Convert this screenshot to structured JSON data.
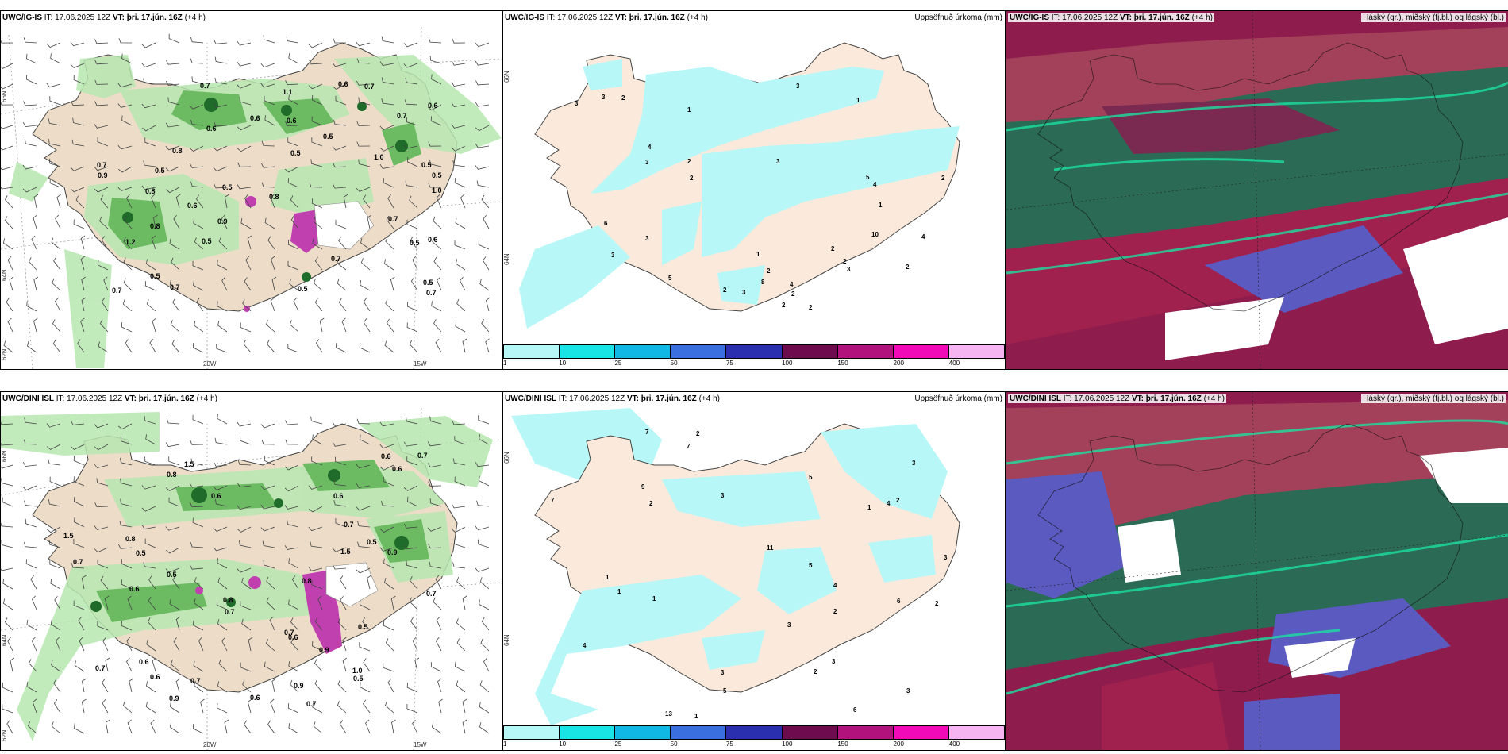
{
  "panels": {
    "p1": {
      "model": "UWC/IG-IS",
      "it_label": "IT:",
      "it": "17.06.2025 12Z",
      "vt_label": "VT:",
      "vt": "þri. 17.jún. 16Z",
      "lead": "(+4 h)"
    },
    "p2": {
      "model": "UWC/IG-IS",
      "it_label": "IT:",
      "it": "17.06.2025 12Z",
      "vt_label": "VT:",
      "vt": "þri. 17.jún. 16Z",
      "lead": "(+4 h)",
      "field": "Uppsöfnuð úrkoma (mm)"
    },
    "p3": {
      "model": "UWC/IG-IS",
      "it_label": "IT:",
      "it": "17.06.2025 12Z",
      "vt_label": "VT:",
      "vt": "þri. 17.jún. 16Z",
      "lead": "(+4 h)",
      "field": "Háský (gr.), miðský (fj.bl.) og lágský (bl.)"
    },
    "p4": {
      "model": "UWC/DINI ISL",
      "it_label": "IT:",
      "it": "17.06.2025 12Z",
      "vt_label": "VT:",
      "vt": "þri. 17.jún. 16Z",
      "lead": "(+4 h)"
    },
    "p5": {
      "model": "UWC/DINI ISL",
      "it_label": "IT:",
      "it": "17.06.2025 12Z",
      "vt_label": "VT:",
      "vt": "þri. 17.jún. 16Z",
      "lead": "(+4 h)",
      "field": "Uppsöfnuð úrkoma (mm)"
    },
    "p6": {
      "model": "UWC/DINI ISL",
      "it_label": "IT:",
      "it": "17.06.2025 12Z",
      "vt_label": "VT:",
      "vt": "þri. 17.jún. 16Z",
      "lead": "(+4 h)",
      "field": "Háský (gr.), miðský (fj.bl.) og lágský (bl.)"
    }
  },
  "axes": {
    "lat_66": "66N",
    "lat_64": "64N",
    "lat_62": "62N",
    "lon_20": "20W",
    "lon_15": "15W"
  },
  "legend": {
    "colors": [
      "#b8f7f7",
      "#19e5e5",
      "#10b8e6",
      "#3a6fe0",
      "#2a2fb0",
      "#6e0a4e",
      "#b2127c",
      "#f00ab8",
      "#f4b5f0"
    ],
    "ticks": [
      "1",
      "10",
      "25",
      "50",
      "75",
      "100",
      "150",
      "200",
      "400"
    ]
  },
  "precip_labels_top": [
    "0.6",
    "0.5",
    "0.5",
    "0.5",
    "0.5",
    "0.6",
    "0.9",
    "0.6",
    "0.5",
    "0.7",
    "0.8",
    "0.7",
    "1.0",
    "0.5",
    "1.2",
    "0.8",
    "0.6",
    "0.7",
    "0.7",
    "0.6",
    "0.5",
    "0.6",
    "0.5",
    "0.8",
    "0.5",
    "0.7",
    "0.7",
    "0.7",
    "0.5",
    "0.6",
    "0.7",
    "0.7",
    "0.8",
    "1.1",
    "0.5",
    "0.9",
    "1.0"
  ],
  "precip_labels_bottom": [
    "0.7",
    "0.8",
    "0.6",
    "0.8",
    "0.5",
    "0.9",
    "0.7",
    "0.5",
    "0.7",
    "0.6",
    "0.7",
    "1.5",
    "0.8",
    "0.7",
    "1.5",
    "0.6",
    "0.7",
    "0.6",
    "0.5",
    "0.9",
    "1.0",
    "0.6",
    "0.9",
    "0.5",
    "0.8",
    "0.7",
    "0.6",
    "0.5",
    "0.6",
    "0.6",
    "0.9",
    "0.7",
    "0.6",
    "0.7",
    "1.5"
  ],
  "accum_labels_top": [
    "2",
    "2",
    "3",
    "3",
    "2",
    "3",
    "8",
    "6",
    "5",
    "4",
    "3",
    "2",
    "3",
    "2",
    "1",
    "2",
    "2",
    "3",
    "4",
    "4",
    "2",
    "1",
    "3",
    "2",
    "4",
    "5",
    "3",
    "2",
    "1",
    "2",
    "3",
    "2",
    "10",
    "1"
  ],
  "accum_labels_bottom": [
    "2",
    "2",
    "1",
    "3",
    "9",
    "13",
    "11",
    "3",
    "3",
    "5",
    "7",
    "7",
    "4",
    "6",
    "2",
    "1",
    "4",
    "3",
    "2",
    "1",
    "3",
    "5",
    "5",
    "1",
    "2",
    "4",
    "7",
    "6",
    "3",
    "2",
    "1",
    "3"
  ]
}
